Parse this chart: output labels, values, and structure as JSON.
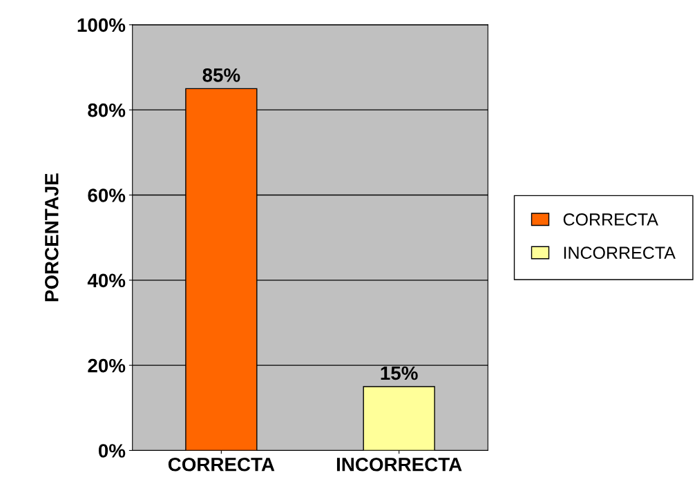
{
  "chart_data": {
    "type": "bar",
    "ylabel": "PORCENTAJE",
    "categories": [
      "CORRECTA",
      "INCORRECTA"
    ],
    "series": [
      {
        "name": "CORRECTA",
        "color": "#ff6600",
        "values": [
          85,
          null
        ],
        "value_labels": [
          "85%",
          null
        ]
      },
      {
        "name": "INCORRECTA",
        "color": "#ffff99",
        "values": [
          null,
          15
        ],
        "value_labels": [
          null,
          "15%"
        ]
      }
    ],
    "ylim": [
      0,
      100
    ],
    "yticks": [
      {
        "value": 0,
        "label": "0%"
      },
      {
        "value": 20,
        "label": "20%"
      },
      {
        "value": 40,
        "label": "40%"
      },
      {
        "value": 60,
        "label": "60%"
      },
      {
        "value": 80,
        "label": "80%"
      },
      {
        "value": 100,
        "label": "100%"
      }
    ],
    "grid": "y",
    "legend": "right"
  }
}
